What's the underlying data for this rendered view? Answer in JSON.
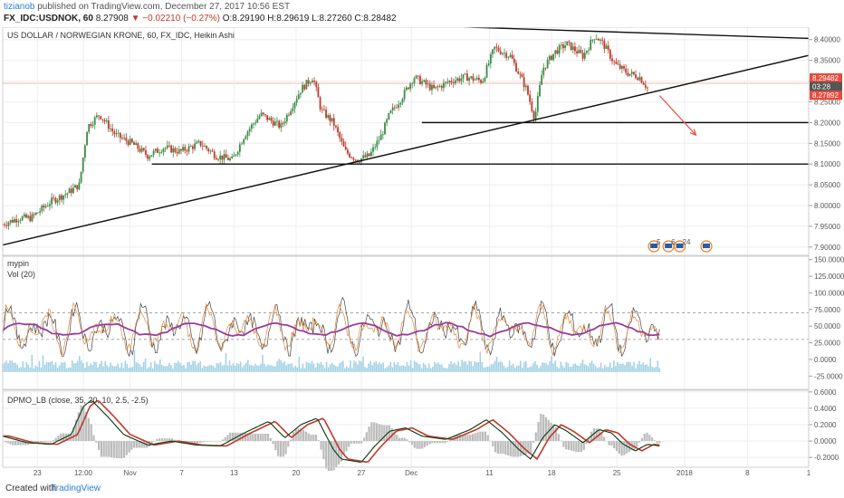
{
  "header": {
    "author": "tizianob",
    "published_text": "published on TradingView.com, December 27, 2017 10:56 EST",
    "symbol_line": "FX_IDC:USDNOK, 60",
    "last": "8.27908",
    "change": "▼ −0.02210 (−0.27%)",
    "open_label": "O:",
    "open": "8.29190",
    "high_label": "H:",
    "high": "8.29619",
    "low_label": "L:",
    "low": "8.27260",
    "close_label": "C:",
    "close": "8.28482"
  },
  "main_panel": {
    "title": "US DOLLAR / NORWEGIAN KRONE, 60, FX_IDC, Heikin Ashi"
  },
  "osc_panel": {
    "title": "mypin",
    "subtitle": "Vol (20)"
  },
  "dpmo_panel": {
    "title": "DPMO_LB (close, 35, 20, 10, 2.5, -2.5)"
  },
  "footer": {
    "created_with": "Created with",
    "brand": "TradingView"
  },
  "colors": {
    "up": "#3c8a45",
    "down": "#c0392b",
    "grid": "#eeeeee",
    "axis_text": "#555555",
    "price_box_1": "#e74c3c",
    "price_box_2": "#555555",
    "price_box_3": "#e74c3c",
    "osc_ma": "#9b3c9b",
    "vol_bars": "#8ec7df",
    "dpmo_line": "#111111",
    "dpmo_signal": "#c0392b",
    "dpmo_hist": "#bbbbbb",
    "arrow": "#e74c3c"
  },
  "chart_data": [
    {
      "type": "candlestick",
      "name": "USDNOK price",
      "ylim": [
        7.88,
        8.43
      ],
      "yticks": [
        "8.40000",
        "8.35000",
        "8.30000",
        "8.25000",
        "8.20000",
        "8.15000",
        "8.10000",
        "8.05000",
        "8.00000",
        "7.95000",
        "7.90000"
      ],
      "price_labels": [
        "8.29482",
        "03:28",
        "8.27892"
      ],
      "xticks": [
        {
          "label": "23",
          "pos": 0.043
        },
        {
          "label": "12:00",
          "pos": 0.1
        },
        {
          "label": "Nov",
          "pos": 0.158
        },
        {
          "label": "7",
          "pos": 0.222
        },
        {
          "label": "13",
          "pos": 0.287
        },
        {
          "label": "20",
          "pos": 0.364
        },
        {
          "label": "27",
          "pos": 0.445
        },
        {
          "label": "Dec",
          "pos": 0.507
        },
        {
          "label": "11",
          "pos": 0.604
        },
        {
          "label": "18",
          "pos": 0.681
        },
        {
          "label": "25",
          "pos": 0.762
        },
        {
          "label": "2018",
          "pos": 0.846
        },
        {
          "label": "8",
          "pos": 0.924
        },
        {
          "label": "1",
          "pos": 1.0
        }
      ],
      "trend_path": [
        [
          0.0,
          7.955
        ],
        [
          0.02,
          7.97
        ],
        [
          0.035,
          7.97
        ],
        [
          0.06,
          8.01
        ],
        [
          0.08,
          8.03
        ],
        [
          0.095,
          8.05
        ],
        [
          0.105,
          8.19
        ],
        [
          0.12,
          8.22
        ],
        [
          0.14,
          8.17
        ],
        [
          0.16,
          8.15
        ],
        [
          0.18,
          8.12
        ],
        [
          0.2,
          8.14
        ],
        [
          0.22,
          8.13
        ],
        [
          0.245,
          8.15
        ],
        [
          0.265,
          8.12
        ],
        [
          0.285,
          8.11
        ],
        [
          0.3,
          8.17
        ],
        [
          0.32,
          8.22
        ],
        [
          0.345,
          8.19
        ],
        [
          0.37,
          8.28
        ],
        [
          0.385,
          8.31
        ],
        [
          0.395,
          8.23
        ],
        [
          0.41,
          8.2
        ],
        [
          0.425,
          8.13
        ],
        [
          0.44,
          8.11
        ],
        [
          0.455,
          8.12
        ],
        [
          0.47,
          8.17
        ],
        [
          0.48,
          8.22
        ],
        [
          0.495,
          8.26
        ],
        [
          0.51,
          8.31
        ],
        [
          0.535,
          8.28
        ],
        [
          0.555,
          8.3
        ],
        [
          0.575,
          8.31
        ],
        [
          0.595,
          8.3
        ],
        [
          0.61,
          8.38
        ],
        [
          0.63,
          8.36
        ],
        [
          0.65,
          8.28
        ],
        [
          0.66,
          8.21
        ],
        [
          0.67,
          8.33
        ],
        [
          0.685,
          8.37
        ],
        [
          0.7,
          8.39
        ],
        [
          0.72,
          8.36
        ],
        [
          0.735,
          8.41
        ],
        [
          0.745,
          8.39
        ],
        [
          0.76,
          8.34
        ],
        [
          0.775,
          8.32
        ],
        [
          0.79,
          8.31
        ],
        [
          0.8,
          8.284
        ]
      ],
      "annotations": [
        {
          "type": "trendline",
          "from": [
            0.0,
            7.905
          ],
          "to": [
            1.0,
            8.362
          ]
        },
        {
          "type": "trendline",
          "from": [
            0.375,
            8.443
          ],
          "to": [
            1.0,
            8.403
          ]
        },
        {
          "type": "horizontal",
          "from_x": 0.52,
          "to_x": 1.0,
          "y": 8.2
        },
        {
          "type": "horizontal",
          "from_x": 0.185,
          "to_x": 1.0,
          "y": 8.1
        },
        {
          "type": "arrow",
          "from": [
            0.815,
            8.265
          ],
          "to": [
            0.86,
            8.17
          ]
        }
      ],
      "event_markers": [
        "5",
        "6",
        "24"
      ]
    },
    {
      "type": "line",
      "name": "mypin / Vol (20)",
      "ylim": [
        -45,
        155
      ],
      "yticks": [
        "150.0000",
        "125.0000",
        "100.0000",
        "75.0000",
        "50.0000",
        "25.0000",
        "0.0000",
        "-25.0000"
      ],
      "levels": [
        70,
        30
      ],
      "ma_level": 45
    },
    {
      "type": "line",
      "name": "DPMO_LB",
      "ylim": [
        -0.32,
        0.62
      ],
      "yticks": [
        "0.6000",
        "0.4000",
        "0.2000",
        "0.0000",
        "-0.2000"
      ],
      "path": [
        [
          0.0,
          0.06
        ],
        [
          0.03,
          -0.02
        ],
        [
          0.06,
          -0.04
        ],
        [
          0.085,
          0.08
        ],
        [
          0.1,
          0.42
        ],
        [
          0.11,
          0.5
        ],
        [
          0.13,
          0.3
        ],
        [
          0.15,
          0.08
        ],
        [
          0.18,
          -0.05
        ],
        [
          0.21,
          0.0
        ],
        [
          0.24,
          -0.05
        ],
        [
          0.27,
          -0.06
        ],
        [
          0.3,
          0.1
        ],
        [
          0.33,
          0.24
        ],
        [
          0.35,
          0.04
        ],
        [
          0.37,
          0.2
        ],
        [
          0.39,
          0.28
        ],
        [
          0.41,
          -0.1
        ],
        [
          0.42,
          -0.22
        ],
        [
          0.445,
          -0.26
        ],
        [
          0.46,
          -0.08
        ],
        [
          0.48,
          0.12
        ],
        [
          0.5,
          0.16
        ],
        [
          0.52,
          0.06
        ],
        [
          0.55,
          0.02
        ],
        [
          0.58,
          0.14
        ],
        [
          0.6,
          0.26
        ],
        [
          0.62,
          0.1
        ],
        [
          0.64,
          -0.1
        ],
        [
          0.655,
          -0.22
        ],
        [
          0.67,
          0.04
        ],
        [
          0.685,
          0.2
        ],
        [
          0.7,
          0.12
        ],
        [
          0.72,
          -0.02
        ],
        [
          0.74,
          0.14
        ],
        [
          0.755,
          0.1
        ],
        [
          0.77,
          -0.04
        ],
        [
          0.785,
          -0.12
        ],
        [
          0.8,
          -0.04
        ],
        [
          0.815,
          -0.06
        ]
      ]
    }
  ]
}
